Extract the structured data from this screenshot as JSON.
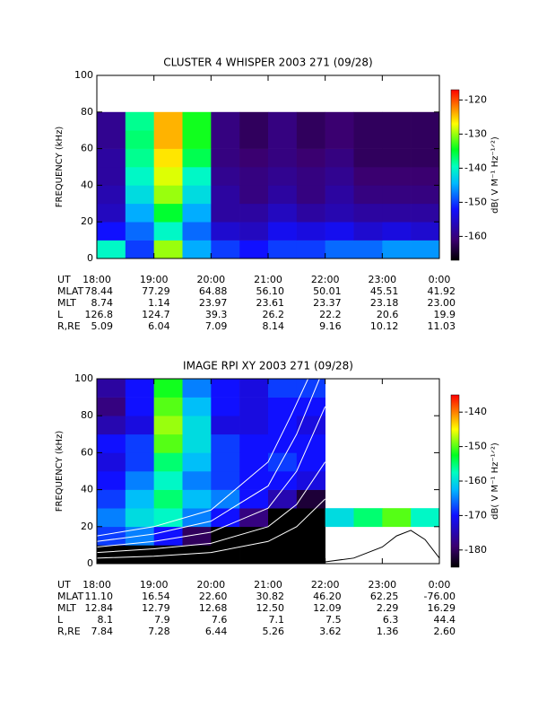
{
  "chart_data": [
    {
      "type": "heatmap",
      "title": "CLUSTER 4 WHISPER 2003 271 (09/28)",
      "ylabel": "FREQUENCY (kHz)",
      "xlim": [
        18,
        24
      ],
      "xticks": [
        {
          "value": 18,
          "label": "18:00"
        },
        {
          "value": 19,
          "label": "19:00"
        },
        {
          "value": 20,
          "label": "20:00"
        },
        {
          "value": 21,
          "label": "21:00"
        },
        {
          "value": 22,
          "label": "22:00"
        },
        {
          "value": 23,
          "label": "23:00"
        },
        {
          "value": 24,
          "label": "0:00"
        }
      ],
      "ylim": [
        0,
        100
      ],
      "yticks": [
        0,
        20,
        40,
        60,
        80,
        100
      ],
      "xbins": [
        18,
        18.5,
        19,
        19.5,
        20,
        20.5,
        21,
        21.5,
        22,
        22.5,
        23,
        23.5,
        24
      ],
      "ybins": [
        0,
        10,
        20,
        30,
        40,
        50,
        60,
        70,
        80
      ],
      "z": [
        [
          -140,
          -150,
          -130,
          -145,
          -150,
          -152,
          -150,
          -150,
          -148,
          -148,
          -146,
          -146
        ],
        [
          -152,
          -148,
          -140,
          -148,
          -155,
          -156,
          -153,
          -154,
          -153,
          -155,
          -154,
          -155
        ],
        [
          -156,
          -145,
          -135,
          -145,
          -158,
          -158,
          -156,
          -158,
          -157,
          -158,
          -158,
          -158
        ],
        [
          -157,
          -142,
          -130,
          -142,
          -158,
          -160,
          -158,
          -160,
          -158,
          -160,
          -160,
          -160
        ],
        [
          -158,
          -140,
          -128,
          -140,
          -159,
          -160,
          -159,
          -160,
          -159,
          -161,
          -161,
          -161
        ],
        [
          -158,
          -138,
          -126,
          -136,
          -160,
          -161,
          -160,
          -161,
          -160,
          -162,
          -162,
          -162
        ],
        [
          -159,
          -137,
          -124,
          -134,
          -160,
          -162,
          -160,
          -162,
          -161,
          -162,
          -162,
          -162
        ],
        [
          -159,
          -138,
          -124,
          -134,
          -160,
          -162,
          -160,
          -162,
          -161,
          -162,
          -162,
          -162
        ]
      ],
      "zlim": [
        -167,
        -117
      ],
      "zticks": [
        -160,
        -150,
        -140,
        -130,
        -120
      ],
      "colorbar_label": "dB( V M⁻¹ Hz⁻¹ᐟ²)",
      "xlabel": "UT",
      "ephemeris": [
        {
          "name": "MLAT",
          "values": [
            "78.44",
            "77.29",
            "64.88",
            "56.10",
            "50.01",
            "45.51",
            "41.92"
          ]
        },
        {
          "name": "MLT",
          "values": [
            "8.74",
            "1.14",
            "23.97",
            "23.61",
            "23.37",
            "23.18",
            "23.00"
          ]
        },
        {
          "name": "L",
          "values": [
            "126.8",
            "124.7",
            "39.3",
            "26.2",
            "22.2",
            "20.6",
            "19.9"
          ]
        },
        {
          "name": "R,RE",
          "values": [
            "5.09",
            "6.04",
            "7.09",
            "8.14",
            "9.16",
            "10.12",
            "11.03"
          ]
        }
      ]
    },
    {
      "type": "heatmap",
      "title": "IMAGE RPI XY 2003 271 (09/28)",
      "ylabel": "FREQUENCY (kHz)",
      "xlim": [
        18,
        24
      ],
      "xticks": [
        {
          "value": 18,
          "label": "18:00"
        },
        {
          "value": 19,
          "label": "19:00"
        },
        {
          "value": 20,
          "label": "20:00"
        },
        {
          "value": 21,
          "label": "21:00"
        },
        {
          "value": 22,
          "label": "22:00"
        },
        {
          "value": 23,
          "label": "23:00"
        },
        {
          "value": 24,
          "label": "0:00"
        }
      ],
      "ylim": [
        0,
        100
      ],
      "yticks": [
        0,
        20,
        40,
        60,
        80,
        100
      ],
      "xbins": [
        18,
        18.5,
        19,
        19.5,
        20,
        20.5,
        21,
        21.5,
        22,
        22.5,
        23,
        23.5,
        24
      ],
      "ybins": [
        0,
        10,
        20,
        30,
        40,
        50,
        60,
        70,
        80,
        90,
        100
      ],
      "z": [
        [
          -190,
          -190,
          -190,
          -190,
          -190,
          -190,
          -190,
          -190,
          null,
          null,
          null,
          null
        ],
        [
          -168,
          -165,
          -170,
          -180,
          -185,
          -190,
          -190,
          -190,
          null,
          null,
          null,
          null
        ],
        [
          -165,
          -160,
          -158,
          -165,
          -170,
          -178,
          -185,
          -190,
          -160,
          -155,
          -150,
          -158
        ],
        [
          -168,
          -162,
          -155,
          -162,
          -165,
          -170,
          -175,
          -182,
          null,
          null,
          null,
          null
        ],
        [
          -170,
          -165,
          -158,
          -165,
          -168,
          -170,
          -170,
          -172,
          null,
          null,
          null,
          null
        ],
        [
          -172,
          -168,
          -155,
          -162,
          -168,
          -170,
          -168,
          -170,
          null,
          null,
          null,
          null
        ],
        [
          -170,
          -168,
          -150,
          -160,
          -168,
          -170,
          -170,
          -170,
          null,
          null,
          null,
          null
        ],
        [
          -175,
          -172,
          -148,
          -160,
          -172,
          -172,
          -170,
          -172,
          null,
          null,
          null,
          null
        ],
        [
          -178,
          -170,
          -150,
          -162,
          -170,
          -172,
          -170,
          -170,
          null,
          null,
          null,
          null
        ],
        [
          -176,
          -170,
          -152,
          -165,
          -170,
          -172,
          -168,
          -168,
          null,
          null,
          null,
          null
        ]
      ],
      "zlim": [
        -185,
        -135
      ],
      "zticks": [
        -180,
        -170,
        -160,
        -150,
        -140
      ],
      "colorbar_label": "dB( V M⁻¹ Hz⁻¹ᐟ²)",
      "xlabel": "UT",
      "lines": [
        {
          "color": "#ffffff",
          "x": [
            18,
            19,
            20,
            21,
            21.5,
            22
          ],
          "values": [
            3,
            4,
            6,
            12,
            20,
            35
          ]
        },
        {
          "color": "#ffffff",
          "x": [
            18,
            19,
            20,
            21,
            21.5,
            22
          ],
          "values": [
            6,
            8,
            11,
            20,
            32,
            55
          ]
        },
        {
          "color": "#ffffff",
          "x": [
            18,
            19,
            20,
            21,
            21.5,
            22
          ],
          "values": [
            9,
            12,
            17,
            30,
            50,
            85
          ]
        },
        {
          "color": "#ffffff",
          "x": [
            18,
            19,
            20,
            21,
            21.5,
            21.9
          ],
          "values": [
            12,
            16,
            23,
            42,
            70,
            100
          ]
        },
        {
          "color": "#ffffff",
          "x": [
            18,
            19,
            20,
            21,
            21.4,
            21.7
          ],
          "values": [
            15,
            20,
            29,
            55,
            80,
            100
          ]
        },
        {
          "color": "#000000",
          "x": [
            21,
            21.5,
            22,
            22.5,
            23,
            23.25,
            23.5,
            23.75,
            24
          ],
          "values": [
            0,
            0.3,
            1,
            3,
            9,
            15,
            18,
            13,
            3
          ]
        }
      ],
      "ephemeris": [
        {
          "name": "MLAT",
          "values": [
            "11.10",
            "16.54",
            "22.60",
            "30.82",
            "46.20",
            "62.25",
            "-76.00"
          ]
        },
        {
          "name": "MLT",
          "values": [
            "12.84",
            "12.79",
            "12.68",
            "12.50",
            "12.09",
            "2.29",
            "16.29"
          ]
        },
        {
          "name": "L",
          "values": [
            "8.1",
            "7.9",
            "7.6",
            "7.1",
            "7.5",
            "6.3",
            "44.4"
          ]
        },
        {
          "name": "R,RE",
          "values": [
            "7.84",
            "7.28",
            "6.44",
            "5.26",
            "3.62",
            "1.36",
            "2.60"
          ]
        }
      ]
    }
  ]
}
